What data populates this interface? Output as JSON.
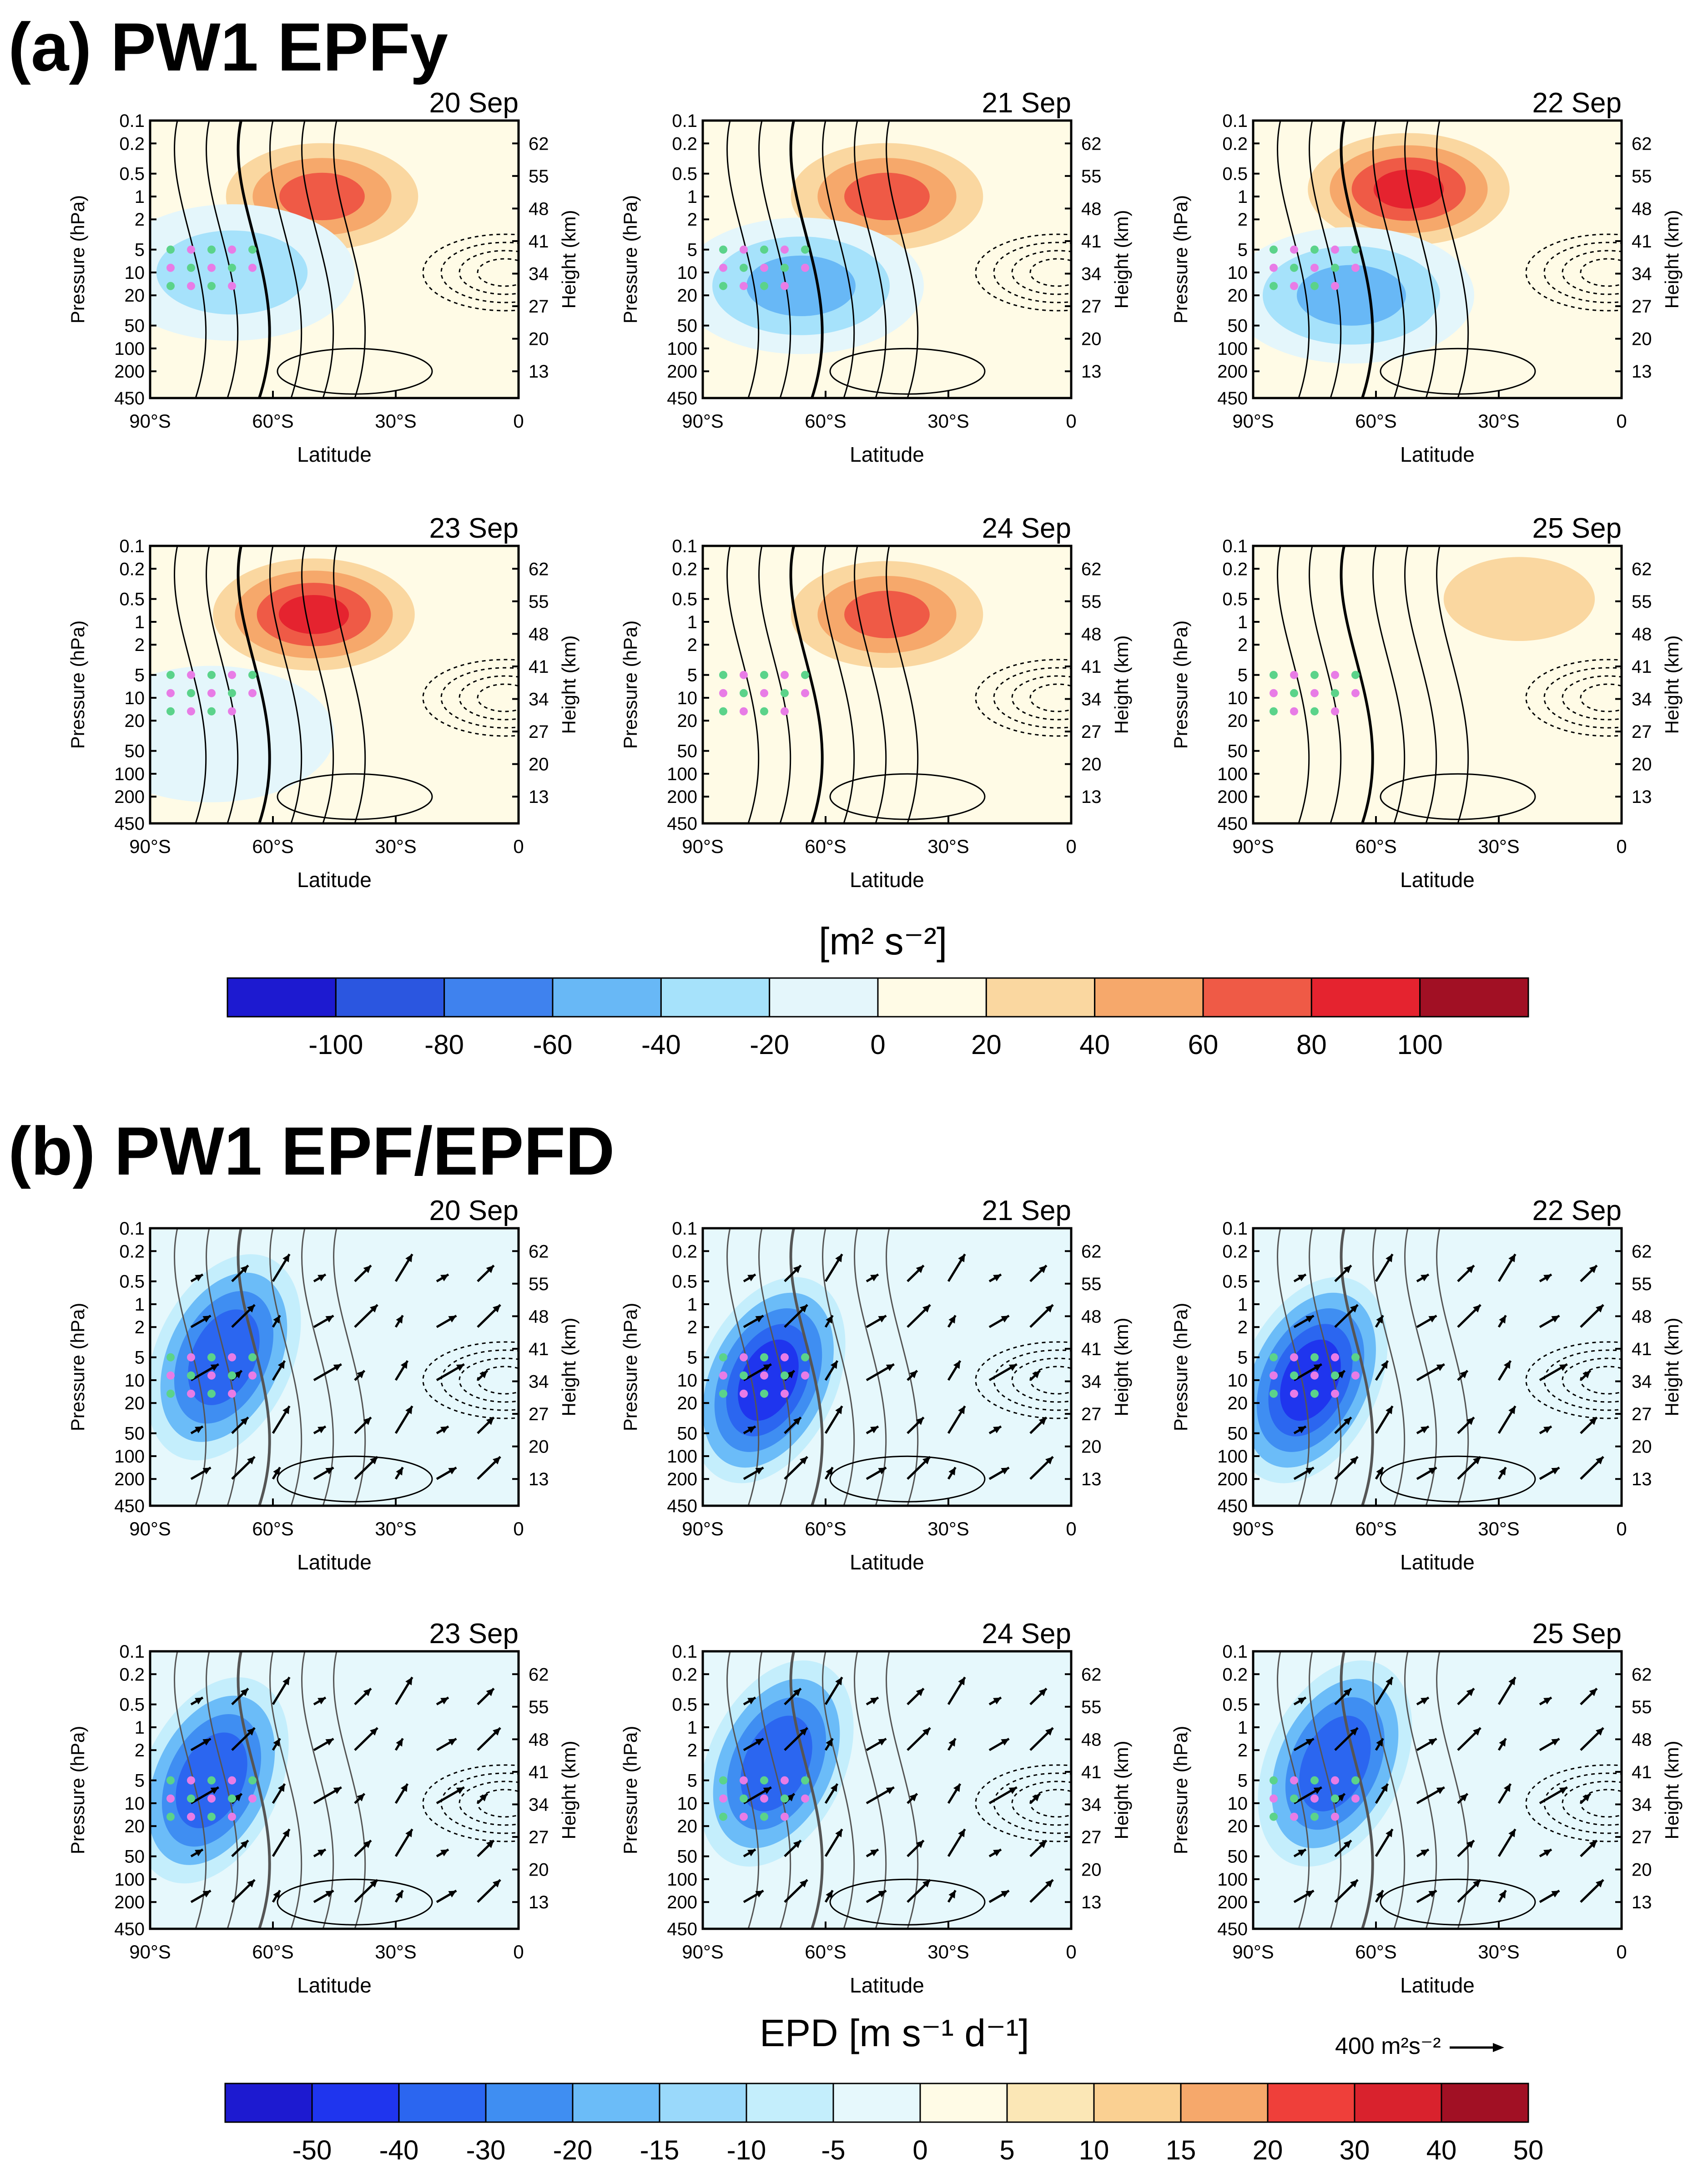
{
  "sections": [
    {
      "id": "a",
      "title": "(a) PW1 EPFy"
    },
    {
      "id": "b",
      "title": "(b) PW1 EPF/EPFD"
    }
  ],
  "panel_text": {
    "ylabel_left": "Pressure (hPa)",
    "ylabel_right": "Height (km)",
    "xlabel": "Latitude",
    "pressure_ticks": [
      "0.1",
      "0.2",
      "0.5",
      "1",
      "2",
      "5",
      "10",
      "20",
      "50",
      "100",
      "200",
      "450"
    ],
    "height_ticks": [
      "62",
      "55",
      "48",
      "41",
      "34",
      "27",
      "20",
      "13"
    ],
    "lat_ticks": [
      "90°S",
      "60°S",
      "30°S",
      "0"
    ]
  },
  "colorbar_a": {
    "unit": "[m² s⁻²]",
    "labels": [
      "-100",
      "-80",
      "-60",
      "-40",
      "-20",
      "0",
      "20",
      "40",
      "60",
      "80",
      "100"
    ],
    "colors": [
      "#1d1ad0",
      "#2b56e0",
      "#3f82ee",
      "#68b8f6",
      "#a6e2fb",
      "#e4f6fb",
      "#fffbe6",
      "#fad7a0",
      "#f6a86b",
      "#ef5a46",
      "#e5232f",
      "#a11024"
    ]
  },
  "colorbar_b": {
    "unit": "EPD [m s⁻¹ d⁻¹]",
    "labels": [
      "-50",
      "-40",
      "-30",
      "-20",
      "-15",
      "-10",
      "-5",
      "0",
      "5",
      "10",
      "15",
      "20",
      "30",
      "40",
      "50"
    ],
    "colors": [
      "#1d1ad0",
      "#1f35ee",
      "#2b66f0",
      "#3f8ef2",
      "#6bbcf8",
      "#9ad9fb",
      "#c4eefc",
      "#e6f8fc",
      "#fffbe6",
      "#fbe7b6",
      "#fad092",
      "#f6a86b",
      "#ef3f3a",
      "#d9222d",
      "#a11024"
    ],
    "ref_arrow_label": "400 m²s⁻²"
  },
  "chart_data": [
    {
      "type": "heatmap",
      "panel": "a",
      "date": "20 Sep",
      "xlim": [
        "90°S",
        "0"
      ],
      "ylim_hPa": [
        450,
        0.1
      ],
      "field": "EPFy",
      "features": [
        {
          "sign": "positive",
          "lat": -48,
          "p_hPa": 1,
          "peak": 80
        },
        {
          "sign": "negative",
          "lat": -70,
          "p_hPa": 10,
          "peak": -40
        }
      ]
    },
    {
      "type": "heatmap",
      "panel": "a",
      "date": "21 Sep",
      "xlim": [
        "90°S",
        "0"
      ],
      "ylim_hPa": [
        450,
        0.1
      ],
      "field": "EPFy",
      "features": [
        {
          "sign": "positive",
          "lat": -45,
          "p_hPa": 1,
          "peak": 80
        },
        {
          "sign": "negative",
          "lat": -66,
          "p_hPa": 15,
          "peak": -60
        }
      ]
    },
    {
      "type": "heatmap",
      "panel": "a",
      "date": "22 Sep",
      "xlim": [
        "90°S",
        "0"
      ],
      "ylim_hPa": [
        450,
        0.1
      ],
      "field": "EPFy",
      "features": [
        {
          "sign": "positive",
          "lat": -52,
          "p_hPa": 0.8,
          "peak": 100
        },
        {
          "sign": "negative",
          "lat": -66,
          "p_hPa": 20,
          "peak": -60
        }
      ]
    },
    {
      "type": "heatmap",
      "panel": "a",
      "date": "23 Sep",
      "xlim": [
        "90°S",
        "0"
      ],
      "ylim_hPa": [
        450,
        0.1
      ],
      "field": "EPFy",
      "features": [
        {
          "sign": "positive",
          "lat": -50,
          "p_hPa": 0.8,
          "peak": 100
        },
        {
          "sign": "negative",
          "lat": -75,
          "p_hPa": 30,
          "peak": -20
        }
      ]
    },
    {
      "type": "heatmap",
      "panel": "a",
      "date": "24 Sep",
      "xlim": [
        "90°S",
        "0"
      ],
      "ylim_hPa": [
        450,
        0.1
      ],
      "field": "EPFy",
      "features": [
        {
          "sign": "positive",
          "lat": -45,
          "p_hPa": 0.8,
          "peak": 80
        }
      ]
    },
    {
      "type": "heatmap",
      "panel": "a",
      "date": "25 Sep",
      "xlim": [
        "90°S",
        "0"
      ],
      "ylim_hPa": [
        450,
        0.1
      ],
      "field": "EPFy",
      "features": [
        {
          "sign": "positive",
          "lat": -25,
          "p_hPa": 0.5,
          "peak": 40
        }
      ]
    },
    {
      "type": "heatmap",
      "panel": "b",
      "date": "20 Sep",
      "xlim": [
        "90°S",
        "0"
      ],
      "ylim_hPa": [
        450,
        0.1
      ],
      "field": "EPFD",
      "features": [
        {
          "sign": "negative",
          "lat": -72,
          "p_hPa": 5,
          "peak": -40
        }
      ]
    },
    {
      "type": "heatmap",
      "panel": "b",
      "date": "21 Sep",
      "xlim": [
        "90°S",
        "0"
      ],
      "ylim_hPa": [
        450,
        0.1
      ],
      "field": "EPFD",
      "features": [
        {
          "sign": "negative",
          "lat": -74,
          "p_hPa": 10,
          "peak": -50
        }
      ]
    },
    {
      "type": "heatmap",
      "panel": "b",
      "date": "22 Sep",
      "xlim": [
        "90°S",
        "0"
      ],
      "ylim_hPa": [
        450,
        0.1
      ],
      "field": "EPFD",
      "features": [
        {
          "sign": "negative",
          "lat": -76,
          "p_hPa": 10,
          "peak": -50
        }
      ]
    },
    {
      "type": "heatmap",
      "panel": "b",
      "date": "23 Sep",
      "xlim": [
        "90°S",
        "0"
      ],
      "ylim_hPa": [
        450,
        0.1
      ],
      "field": "EPFD",
      "features": [
        {
          "sign": "negative",
          "lat": -75,
          "p_hPa": 5,
          "peak": -40
        }
      ]
    },
    {
      "type": "heatmap",
      "panel": "b",
      "date": "24 Sep",
      "xlim": [
        "90°S",
        "0"
      ],
      "ylim_hPa": [
        450,
        0.1
      ],
      "field": "EPFD",
      "features": [
        {
          "sign": "negative",
          "lat": -72,
          "p_hPa": 3,
          "peak": -40
        }
      ]
    },
    {
      "type": "heatmap",
      "panel": "b",
      "date": "25 Sep",
      "xlim": [
        "90°S",
        "0"
      ],
      "ylim_hPa": [
        450,
        0.1
      ],
      "field": "EPFD",
      "features": [
        {
          "sign": "negative",
          "lat": -70,
          "p_hPa": 3,
          "peak": -40
        }
      ]
    }
  ]
}
